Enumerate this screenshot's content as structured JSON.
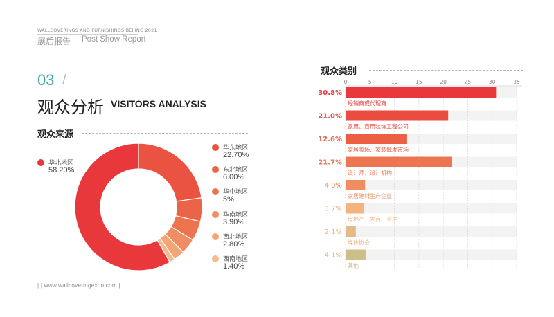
{
  "header": {
    "small_title": "WALLCOVERINGS AND FURNISHINGS BEIJING 2021",
    "report_cn": "展后报告",
    "report_en": "Post Show Report"
  },
  "section": {
    "number": "03",
    "slash": "/",
    "title_cn": "观众分析",
    "title_en": "VISITORS ANALYSIS"
  },
  "footer": {
    "text": "| |   www.wallcoveringexpo.com  | |"
  },
  "chart_data": [
    {
      "type": "pie",
      "title": "观众来源",
      "donut": true,
      "slices": [
        {
          "label": "华北地区",
          "value": 58.2,
          "display": "58.20%",
          "color": "#e8383b"
        },
        {
          "label": "华东地区",
          "value": 22.7,
          "display": "22.70%",
          "color": "#ea5342"
        },
        {
          "label": "东北地区",
          "value": 6.0,
          "display": "6.00%",
          "color": "#ec6448"
        },
        {
          "label": "华中地区",
          "value": 5,
          "display": "5%",
          "color": "#ee744e"
        },
        {
          "label": "华南地区",
          "value": 3.9,
          "display": "3.90%",
          "color": "#f08d65"
        },
        {
          "label": "西北地区",
          "value": 2.8,
          "display": "2.80%",
          "color": "#f3a576"
        },
        {
          "label": "西南地区",
          "value": 1.4,
          "display": "1.40%",
          "color": "#f5ba8e"
        }
      ]
    },
    {
      "type": "bar",
      "orientation": "horizontal",
      "title": "观众类别",
      "xlim": [
        0,
        35
      ],
      "xticks": [
        0,
        5,
        10,
        15,
        20,
        25,
        30,
        35
      ],
      "grid": "vertical-dashed",
      "bars": [
        {
          "label": "经销商或代理商",
          "value": 30.8,
          "display": "30.8%",
          "color": "#e8383b"
        },
        {
          "label": "家用、商用装饰工程公司",
          "value": 21.0,
          "display": "21.0%",
          "color": "#ea4d3f"
        },
        {
          "label": "家居卖场、家装批发市场",
          "value": 12.6,
          "display": "12.6%",
          "color": "#ec5f45"
        },
        {
          "label": "设计师、设计机构",
          "value": 21.7,
          "display": "21.7%",
          "color": "#ee7551"
        },
        {
          "label": "家居建材生产企业",
          "value": 4.0,
          "display": "4.0%",
          "color": "#f08d62"
        },
        {
          "label": "房地产开发商、业主",
          "value": 3.7,
          "display": "3.7%",
          "color": "#f4b27e"
        },
        {
          "label": "媒体协会",
          "value": 2.1,
          "display": "2.1%",
          "color": "#e4bb88"
        },
        {
          "label": "其他",
          "value": 4.1,
          "display": "4.1%",
          "color": "#cdbf8a"
        }
      ]
    }
  ]
}
